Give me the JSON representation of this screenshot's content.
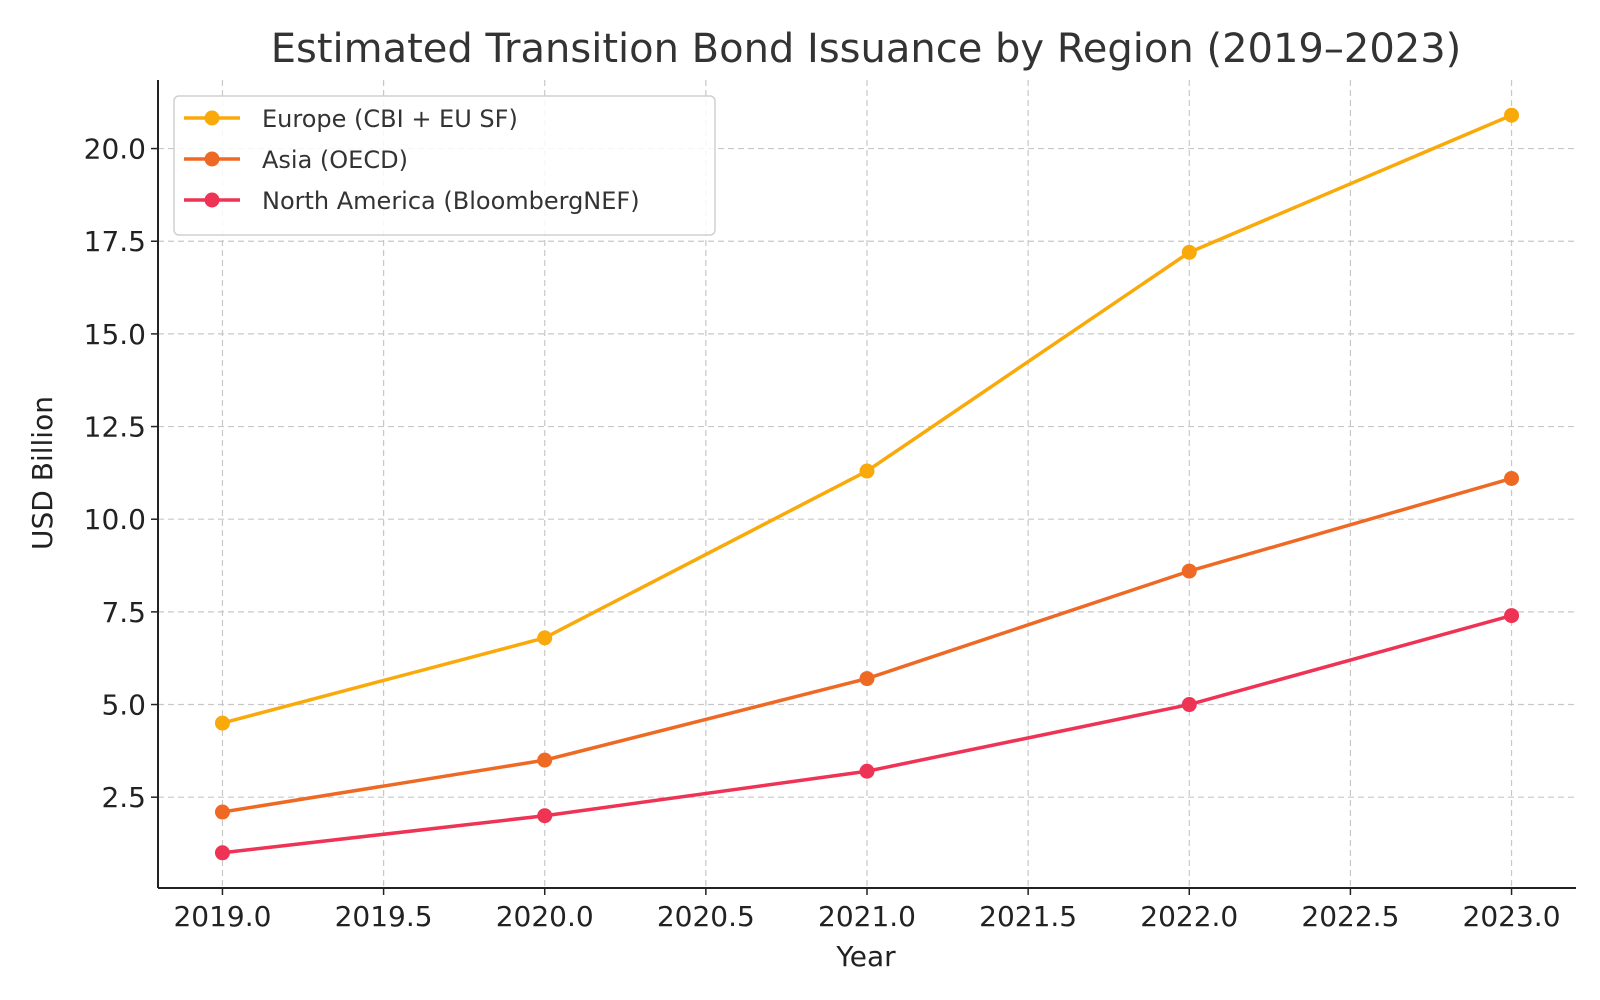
{
  "chart_data": {
    "type": "line",
    "title": "Estimated Transition Bond Issuance by Region (2019–2023)",
    "xlabel": "Year",
    "ylabel": "USD Billion",
    "x": [
      2019,
      2020,
      2021,
      2022,
      2023
    ],
    "xlim": [
      2018.8,
      2023.2
    ],
    "ylim": [
      0.05,
      21.85
    ],
    "x_ticks": [
      "2019.0",
      "2019.5",
      "2020.0",
      "2020.5",
      "2021.0",
      "2021.5",
      "2022.0",
      "2022.5",
      "2023.0"
    ],
    "y_ticks": [
      "2.5",
      "5.0",
      "7.5",
      "10.0",
      "12.5",
      "15.0",
      "17.5",
      "20.0"
    ],
    "grid": true,
    "legend_position": "top-left",
    "series": [
      {
        "name": "Europe (CBI + EU SF)",
        "color": "#F9AA0A",
        "values": [
          4.5,
          6.8,
          11.3,
          17.2,
          20.9
        ]
      },
      {
        "name": "Asia (OECD)",
        "color": "#EE6A24",
        "values": [
          2.1,
          3.5,
          5.7,
          8.6,
          11.1
        ]
      },
      {
        "name": "North America (BloombergNEF)",
        "color": "#EE3355",
        "values": [
          1.0,
          2.0,
          3.2,
          5.0,
          7.4
        ]
      }
    ]
  }
}
